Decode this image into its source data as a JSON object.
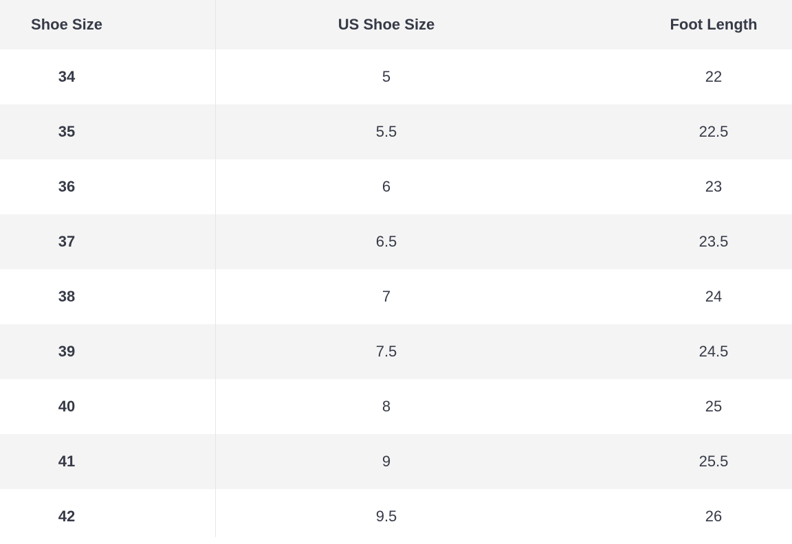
{
  "colors": {
    "text": "#363a47",
    "header_bg": "#f4f4f4",
    "alt_row_bg": "#f4f4f4",
    "row_bg": "#ffffff"
  },
  "table": {
    "headers": [
      "Shoe Size",
      "US Shoe Size",
      "Foot Length"
    ],
    "rows": [
      [
        "34",
        "5",
        "22"
      ],
      [
        "35",
        "5.5",
        "22.5"
      ],
      [
        "36",
        "6",
        "23"
      ],
      [
        "37",
        "6.5",
        "23.5"
      ],
      [
        "38",
        "7",
        "24"
      ],
      [
        "39",
        "7.5",
        "24.5"
      ],
      [
        "40",
        "8",
        "25"
      ],
      [
        "41",
        "9",
        "25.5"
      ],
      [
        "42",
        "9.5",
        "26"
      ]
    ]
  }
}
